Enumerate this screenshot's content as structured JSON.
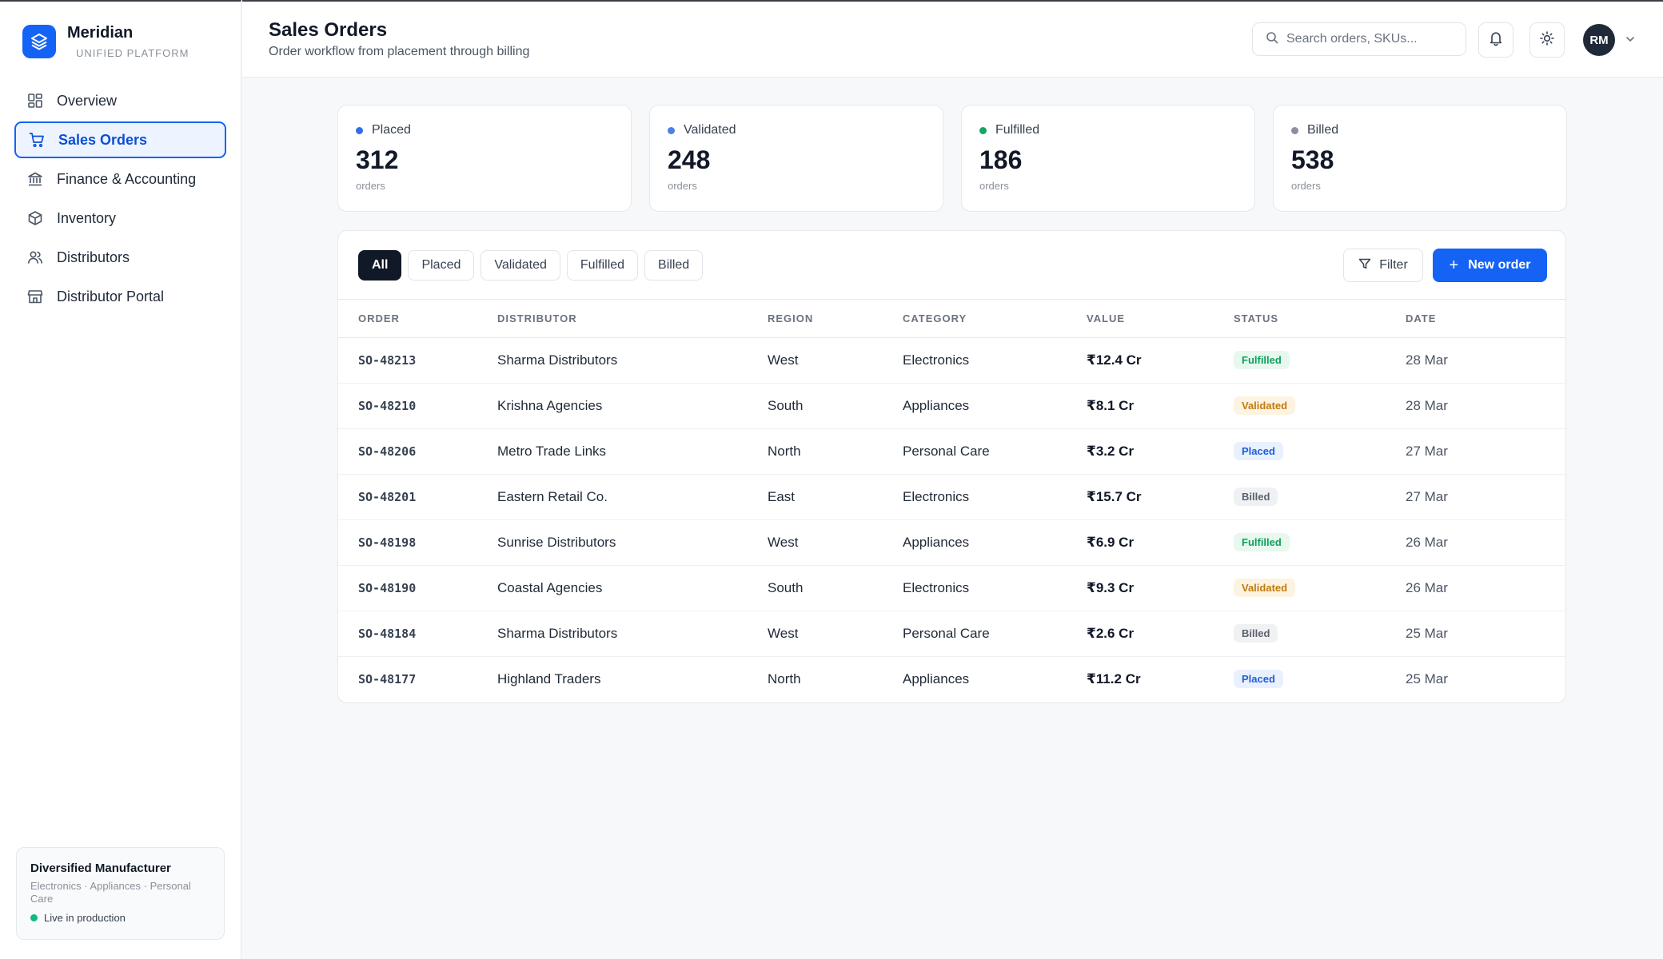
{
  "brand": {
    "name": "Meridian",
    "subtitle": "UNIFIED PLATFORM"
  },
  "nav": [
    {
      "label": "Overview",
      "icon": "grid-icon",
      "active": false
    },
    {
      "label": "Sales Orders",
      "icon": "cart-icon",
      "active": true
    },
    {
      "label": "Finance & Accounting",
      "icon": "bank-icon",
      "active": false
    },
    {
      "label": "Inventory",
      "icon": "box-icon",
      "active": false
    },
    {
      "label": "Distributors",
      "icon": "users-icon",
      "active": false
    },
    {
      "label": "Distributor Portal",
      "icon": "store-icon",
      "active": false
    }
  ],
  "org": {
    "title": "Diversified Manufacturer",
    "subtitle": "Electronics · Appliances · Personal Care",
    "status": "Live in production"
  },
  "header": {
    "title": "Sales Orders",
    "subtitle": "Order workflow from placement through billing",
    "search_placeholder": "Search orders, SKUs...",
    "avatar_initials": "RM"
  },
  "stats": [
    {
      "label": "Placed",
      "value": "312",
      "unit": "orders",
      "color": "#2f6fe8"
    },
    {
      "label": "Validated",
      "value": "248",
      "unit": "orders",
      "color": "#4a7fe6"
    },
    {
      "label": "Fulfilled",
      "value": "186",
      "unit": "orders",
      "color": "#10a763"
    },
    {
      "label": "Billed",
      "value": "538",
      "unit": "orders",
      "color": "#8a909b"
    }
  ],
  "filters": [
    "All",
    "Placed",
    "Validated",
    "Fulfilled",
    "Billed"
  ],
  "active_filter": "All",
  "actions": {
    "filter_label": "Filter",
    "new_order_label": "New order"
  },
  "table": {
    "columns": [
      "ORDER",
      "DISTRIBUTOR",
      "REGION",
      "CATEGORY",
      "VALUE",
      "STATUS",
      "DATE"
    ],
    "rows": [
      {
        "order": "SO-48213",
        "distributor": "Sharma Distributors",
        "region": "West",
        "category": "Electronics",
        "value": "₹12.4 Cr",
        "status": "Fulfilled",
        "date": "28 Mar"
      },
      {
        "order": "SO-48210",
        "distributor": "Krishna Agencies",
        "region": "South",
        "category": "Appliances",
        "value": "₹8.1 Cr",
        "status": "Validated",
        "date": "28 Mar"
      },
      {
        "order": "SO-48206",
        "distributor": "Metro Trade Links",
        "region": "North",
        "category": "Personal Care",
        "value": "₹3.2 Cr",
        "status": "Placed",
        "date": "27 Mar"
      },
      {
        "order": "SO-48201",
        "distributor": "Eastern Retail Co.",
        "region": "East",
        "category": "Electronics",
        "value": "₹15.7 Cr",
        "status": "Billed",
        "date": "27 Mar"
      },
      {
        "order": "SO-48198",
        "distributor": "Sunrise Distributors",
        "region": "West",
        "category": "Appliances",
        "value": "₹6.9 Cr",
        "status": "Fulfilled",
        "date": "26 Mar"
      },
      {
        "order": "SO-48190",
        "distributor": "Coastal Agencies",
        "region": "South",
        "category": "Electronics",
        "value": "₹9.3 Cr",
        "status": "Validated",
        "date": "26 Mar"
      },
      {
        "order": "SO-48184",
        "distributor": "Sharma Distributors",
        "region": "West",
        "category": "Personal Care",
        "value": "₹2.6 Cr",
        "status": "Billed",
        "date": "25 Mar"
      },
      {
        "order": "SO-48177",
        "distributor": "Highland Traders",
        "region": "North",
        "category": "Appliances",
        "value": "₹11.2 Cr",
        "status": "Placed",
        "date": "25 Mar"
      }
    ]
  }
}
